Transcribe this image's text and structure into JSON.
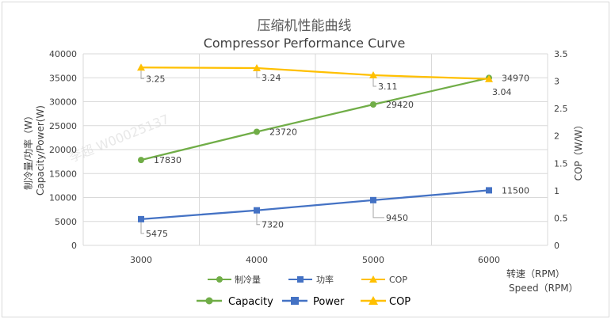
{
  "chart_data": {
    "type": "line",
    "title": "压缩机性能曲线",
    "subtitle": "Compressor Performance Curve",
    "x": [
      3000,
      4000,
      5000,
      6000
    ],
    "x_ticks": [
      "3000",
      "4000",
      "5000",
      "6000"
    ],
    "xlabel_cn": "转速（RPM）",
    "xlabel_en": "Speed（RPM）",
    "ylabel_left_cn": "制冷量/功率（W）",
    "ylabel_left_en": "Capacity/Power(W)",
    "ylabel_right": "COP（W/W）",
    "ylim_left": [
      0,
      40000
    ],
    "yticks_left": [
      "0",
      "5000",
      "10000",
      "15000",
      "20000",
      "25000",
      "30000",
      "35000",
      "40000"
    ],
    "ylim_right": [
      0,
      3.5
    ],
    "yticks_right": [
      "0",
      "0.5",
      "1",
      "1.5",
      "2",
      "2.5",
      "3",
      "3.5"
    ],
    "grid": true,
    "series": [
      {
        "key": "capacity",
        "axis": "left",
        "color": "#70ad47",
        "marker": "circle",
        "values": [
          17830,
          23720,
          29420,
          34970
        ],
        "labels": [
          "17830",
          "23720",
          "29420",
          "34970"
        ]
      },
      {
        "key": "power",
        "axis": "left",
        "color": "#4472c4",
        "marker": "square",
        "values": [
          5475,
          7320,
          9450,
          11500
        ],
        "labels": [
          "5475",
          "7320",
          "9450",
          "11500"
        ]
      },
      {
        "key": "cop",
        "axis": "right",
        "color": "#ffc000",
        "marker": "triangle",
        "values": [
          3.25,
          3.24,
          3.11,
          3.04
        ],
        "labels": [
          "3.25",
          "3.24",
          "3.11",
          "3.04"
        ]
      }
    ],
    "legend_cn": [
      "制冷量",
      "功率",
      "COP"
    ],
    "legend_en": [
      "Capacity",
      "Power",
      "COP"
    ],
    "watermark": "李超 W00025137"
  }
}
